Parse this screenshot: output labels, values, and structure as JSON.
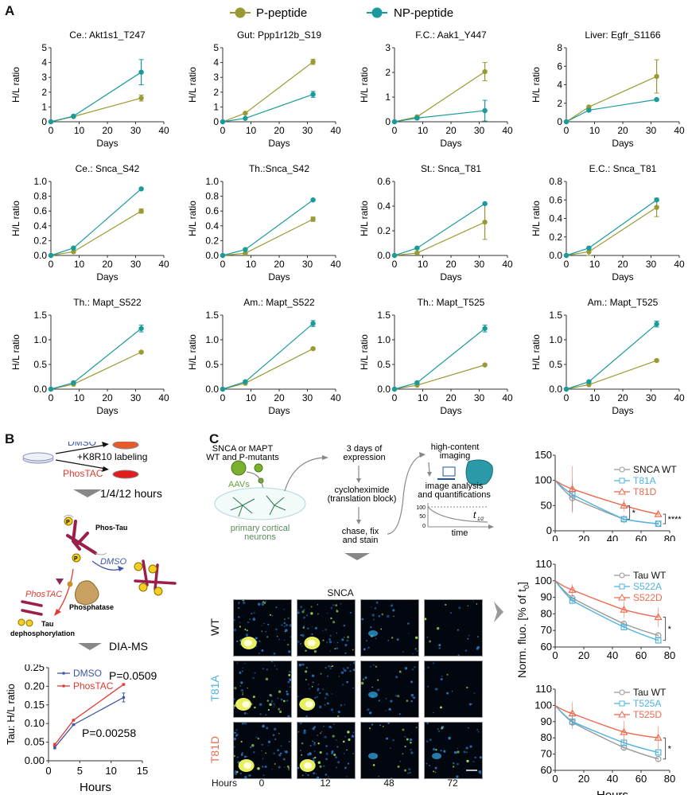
{
  "panel_labels": {
    "a": "A",
    "b": "B",
    "c": "C"
  },
  "colors": {
    "p_peptide": "#9a9a35",
    "np_peptide": "#1a9a9a",
    "dmso": "#3d56a8",
    "phostac": "#e03a32",
    "wt": "#999999",
    "mut_a": "#4fb3e0",
    "mut_d": "#ec6a4f",
    "neuron": "#5a8a5a"
  },
  "legend_a": {
    "p_peptide": "P-peptide",
    "np_peptide": "NP-peptide"
  },
  "chart_data": [
    {
      "type": "line",
      "title": "Ce.: Akt1s1_T247",
      "xlabel": "Days",
      "ylabel": "H/L ratio",
      "xlim": [
        0,
        40
      ],
      "ylim": [
        0,
        5
      ],
      "xticks": [
        "0",
        "10",
        "20",
        "30",
        "40"
      ],
      "yticks": [
        "0",
        "1",
        "2",
        "3",
        "4",
        "5"
      ],
      "x": [
        0,
        8,
        32
      ],
      "series": [
        {
          "name": "P-peptide",
          "values": [
            0,
            0.35,
            1.6
          ],
          "err": [
            0,
            0.05,
            0.2
          ]
        },
        {
          "name": "NP-peptide",
          "values": [
            0,
            0.38,
            3.35
          ],
          "err": [
            0,
            0.05,
            0.85
          ]
        }
      ]
    },
    {
      "type": "line",
      "title": "Gut: Ppp1r12b_S19",
      "xlabel": "Days",
      "ylabel": "H/L ratio",
      "xlim": [
        0,
        40
      ],
      "ylim": [
        0,
        5
      ],
      "xticks": [
        "0",
        "10",
        "20",
        "30",
        "40"
      ],
      "yticks": [
        "0",
        "1",
        "2",
        "3",
        "4",
        "5"
      ],
      "x": [
        0,
        8,
        32
      ],
      "series": [
        {
          "name": "P-peptide",
          "values": [
            0,
            0.58,
            4.05
          ],
          "err": [
            0,
            0.05,
            0.18
          ]
        },
        {
          "name": "NP-peptide",
          "values": [
            0,
            0.23,
            1.85
          ],
          "err": [
            0,
            0.03,
            0.2
          ]
        }
      ]
    },
    {
      "type": "line",
      "title": "F.C.: Aak1_Y447",
      "xlabel": "Days",
      "ylabel": "H/L ratio",
      "xlim": [
        0,
        40
      ],
      "ylim": [
        0,
        3
      ],
      "xticks": [
        "0",
        "10",
        "20",
        "30",
        "40"
      ],
      "yticks": [
        "0",
        "1",
        "2",
        "3"
      ],
      "x": [
        0,
        8,
        32
      ],
      "series": [
        {
          "name": "P-peptide",
          "values": [
            0,
            0.2,
            2.03
          ],
          "err": [
            0,
            0.03,
            0.37
          ]
        },
        {
          "name": "NP-peptide",
          "values": [
            0,
            0.15,
            0.45
          ],
          "err": [
            0,
            0.05,
            0.42
          ]
        }
      ]
    },
    {
      "type": "line",
      "title": "Liver: Egfr_S1166",
      "xlabel": "Days",
      "ylabel": "H/L ratio",
      "xlim": [
        0,
        40
      ],
      "ylim": [
        0,
        8
      ],
      "xticks": [
        "0",
        "10",
        "20",
        "30",
        "40"
      ],
      "yticks": [
        "0",
        "2",
        "4",
        "6",
        "8"
      ],
      "x": [
        0,
        8,
        32
      ],
      "series": [
        {
          "name": "P-peptide",
          "values": [
            0,
            1.6,
            4.9
          ],
          "err": [
            0,
            0.1,
            1.8
          ]
        },
        {
          "name": "NP-peptide",
          "values": [
            0,
            1.25,
            2.4
          ],
          "err": [
            0,
            0.08,
            0.1
          ]
        }
      ]
    },
    {
      "type": "line",
      "title": "Ce.: Snca_S42",
      "xlabel": "Days",
      "ylabel": "H/L ratio",
      "xlim": [
        0,
        40
      ],
      "ylim": [
        0,
        1.0
      ],
      "xticks": [
        "0",
        "10",
        "20",
        "30",
        "40"
      ],
      "yticks": [
        "0.0",
        "0.2",
        "0.4",
        "0.6",
        "0.8",
        "1.0"
      ],
      "x": [
        0,
        8,
        32
      ],
      "series": [
        {
          "name": "P-peptide",
          "values": [
            0,
            0.05,
            0.6
          ],
          "err": [
            0,
            0.01,
            0.03
          ]
        },
        {
          "name": "NP-peptide",
          "values": [
            0,
            0.1,
            0.9
          ],
          "err": [
            0,
            0.01,
            0.01
          ]
        }
      ]
    },
    {
      "type": "line",
      "title": "Th.:Snca_S42",
      "xlabel": "Days",
      "ylabel": "H/L ratio",
      "xlim": [
        0,
        40
      ],
      "ylim": [
        0,
        1.0
      ],
      "xticks": [
        "0",
        "10",
        "20",
        "30",
        "40"
      ],
      "yticks": [
        "0.0",
        "0.2",
        "0.4",
        "0.6",
        "0.8",
        "1.0"
      ],
      "x": [
        0,
        8,
        32
      ],
      "series": [
        {
          "name": "P-peptide",
          "values": [
            0,
            0.03,
            0.49
          ],
          "err": [
            0,
            0.01,
            0.03
          ]
        },
        {
          "name": "NP-peptide",
          "values": [
            0,
            0.08,
            0.75
          ],
          "err": [
            0,
            0.01,
            0.01
          ]
        }
      ]
    },
    {
      "type": "line",
      "title": "St.: Snca_T81",
      "xlabel": "Days",
      "ylabel": "H/L ratio",
      "xlim": [
        0,
        40
      ],
      "ylim": [
        0,
        0.6
      ],
      "xticks": [
        "0",
        "10",
        "20",
        "30",
        "40"
      ],
      "yticks": [
        "0.0",
        "0.2",
        "0.4",
        "0.6"
      ],
      "x": [
        0,
        8,
        32
      ],
      "series": [
        {
          "name": "P-peptide",
          "values": [
            0,
            0.02,
            0.27
          ],
          "err": [
            0,
            0.01,
            0.14
          ]
        },
        {
          "name": "NP-peptide",
          "values": [
            0,
            0.06,
            0.42
          ],
          "err": [
            0,
            0.005,
            0.005
          ]
        }
      ]
    },
    {
      "type": "line",
      "title": "E.C.: Snca_T81",
      "xlabel": "Days",
      "ylabel": "H/L ratio",
      "xlim": [
        0,
        40
      ],
      "ylim": [
        0,
        0.8
      ],
      "xticks": [
        "0",
        "10",
        "20",
        "30",
        "40"
      ],
      "yticks": [
        "0.0",
        "0.2",
        "0.4",
        "0.6",
        "0.8"
      ],
      "x": [
        0,
        8,
        32
      ],
      "series": [
        {
          "name": "P-peptide",
          "values": [
            0,
            0.04,
            0.52
          ],
          "err": [
            0,
            0.04,
            0.1
          ]
        },
        {
          "name": "NP-peptide",
          "values": [
            0,
            0.08,
            0.6
          ],
          "err": [
            0,
            0.01,
            0.01
          ]
        }
      ]
    },
    {
      "type": "line",
      "title": "Th.: Mapt_S522",
      "xlabel": "Days",
      "ylabel": "H/L ratio",
      "xlim": [
        0,
        40
      ],
      "ylim": [
        0,
        1.5
      ],
      "xticks": [
        "0",
        "10",
        "20",
        "30",
        "40"
      ],
      "yticks": [
        "0.0",
        "0.5",
        "1.0",
        "1.5"
      ],
      "x": [
        0,
        8,
        32
      ],
      "series": [
        {
          "name": "P-peptide",
          "values": [
            0,
            0.1,
            0.75
          ],
          "err": [
            0,
            0.01,
            0.02
          ]
        },
        {
          "name": "NP-peptide",
          "values": [
            0,
            0.13,
            1.23
          ],
          "err": [
            0,
            0.02,
            0.07
          ]
        }
      ]
    },
    {
      "type": "line",
      "title": "Am.: Mapt_S522",
      "xlabel": "Days",
      "ylabel": "H/L ratio",
      "xlim": [
        0,
        40
      ],
      "ylim": [
        0,
        1.5
      ],
      "xticks": [
        "0",
        "10",
        "20",
        "30",
        "40"
      ],
      "yticks": [
        "0.0",
        "0.5",
        "1.0",
        "1.5"
      ],
      "x": [
        0,
        8,
        32
      ],
      "series": [
        {
          "name": "P-peptide",
          "values": [
            0,
            0.12,
            0.82
          ],
          "err": [
            0,
            0.01,
            0.02
          ]
        },
        {
          "name": "NP-peptide",
          "values": [
            0,
            0.15,
            1.33
          ],
          "err": [
            0,
            0.02,
            0.06
          ]
        }
      ]
    },
    {
      "type": "line",
      "title": "Th.: Mapt_T525",
      "xlabel": "Days",
      "ylabel": "H/L ratio",
      "xlim": [
        0,
        40
      ],
      "ylim": [
        0,
        1.5
      ],
      "xticks": [
        "0",
        "10",
        "20",
        "30",
        "40"
      ],
      "yticks": [
        "0.0",
        "0.5",
        "1.0",
        "1.5"
      ],
      "x": [
        0,
        8,
        32
      ],
      "series": [
        {
          "name": "P-peptide",
          "values": [
            0,
            0.08,
            0.49
          ],
          "err": [
            0,
            0.01,
            0.02
          ]
        },
        {
          "name": "NP-peptide",
          "values": [
            0,
            0.13,
            1.23
          ],
          "err": [
            0,
            0.02,
            0.07
          ]
        }
      ]
    },
    {
      "type": "line",
      "title": "Am.: Mapt_T525",
      "xlabel": "Days",
      "ylabel": "H/L ratio",
      "xlim": [
        0,
        40
      ],
      "ylim": [
        0,
        1.5
      ],
      "xticks": [
        "0",
        "10",
        "20",
        "30",
        "40"
      ],
      "yticks": [
        "0.0",
        "0.5",
        "1.0",
        "1.5"
      ],
      "x": [
        0,
        8,
        32
      ],
      "series": [
        {
          "name": "P-peptide",
          "values": [
            0,
            0.09,
            0.58
          ],
          "err": [
            0,
            0.01,
            0.02
          ]
        },
        {
          "name": "NP-peptide",
          "values": [
            0,
            0.15,
            1.32
          ],
          "err": [
            0,
            0.02,
            0.06
          ]
        }
      ]
    },
    {
      "type": "line",
      "title": "",
      "xlabel": "Hours",
      "ylabel": "Tau: H/L ratio",
      "xlim": [
        0,
        15
      ],
      "ylim": [
        0,
        0.25
      ],
      "xticks": [
        "0",
        "5",
        "10",
        "15"
      ],
      "yticks": [
        "0.00",
        "0.05",
        "0.10",
        "0.15",
        "0.20",
        "0.25"
      ],
      "x": [
        1,
        4,
        12
      ],
      "series": [
        {
          "name": "DMSO",
          "values": [
            0.036,
            0.097,
            0.17
          ],
          "err": [
            0.004,
            0.002,
            0.012
          ]
        },
        {
          "name": "PhosTAC",
          "values": [
            0.043,
            0.109,
            0.205
          ],
          "err": [
            0.004,
            0.002,
            0.002
          ]
        }
      ],
      "annotations": [
        "P=0.0509",
        "P=0.00258"
      ],
      "legend": "top-left"
    },
    {
      "type": "line",
      "title": "",
      "xlabel": "",
      "ylabel": "",
      "xlim": [
        0,
        80
      ],
      "ylim": [
        0,
        150
      ],
      "xticks": [
        "0",
        "20",
        "40",
        "60",
        "80"
      ],
      "yticks": [
        "0",
        "50",
        "100",
        "150"
      ],
      "x": [
        0,
        12,
        48,
        72
      ],
      "series": [
        {
          "name": "SNCA WT",
          "values": [
            100,
            65,
            23,
            14
          ],
          "err": [
            0,
            30,
            8,
            3
          ]
        },
        {
          "name": "T81A",
          "values": [
            100,
            72,
            23,
            14
          ],
          "err": [
            0,
            30,
            5,
            3
          ]
        },
        {
          "name": "T81D",
          "values": [
            100,
            83,
            50,
            33
          ],
          "err": [
            0,
            45,
            12,
            3
          ]
        }
      ],
      "annotations": [
        "*",
        "****"
      ],
      "legend": "top-right"
    },
    {
      "type": "line",
      "title": "",
      "xlabel": "",
      "ylabel": "Norm. fluo. [% of t0]",
      "xlim": [
        0,
        80
      ],
      "ylim": [
        60,
        110
      ],
      "xticks": [
        "0",
        "20",
        "40",
        "60",
        "80"
      ],
      "yticks": [
        "60",
        "70",
        "80",
        "90",
        "100",
        "110"
      ],
      "x": [
        0,
        12,
        48,
        72
      ],
      "series": [
        {
          "name": "Tau WT",
          "values": [
            100,
            89.5,
            74,
            67
          ],
          "err": [
            0,
            2,
            2,
            1.5
          ]
        },
        {
          "name": "S522A",
          "values": [
            100,
            88,
            72,
            64
          ],
          "err": [
            0,
            2,
            2,
            1
          ]
        },
        {
          "name": "S522D",
          "values": [
            100,
            94.5,
            82.5,
            78
          ],
          "err": [
            0,
            3.5,
            5,
            6
          ]
        }
      ],
      "annotations": [
        "*"
      ],
      "legend": "top-right"
    },
    {
      "type": "line",
      "title": "",
      "xlabel": "Hours",
      "ylabel": "",
      "xlim": [
        0,
        80
      ],
      "ylim": [
        60,
        110
      ],
      "xticks": [
        "0",
        "20",
        "40",
        "60",
        "80"
      ],
      "yticks": [
        "60",
        "70",
        "80",
        "90",
        "100",
        "110"
      ],
      "x": [
        0,
        12,
        48,
        72
      ],
      "series": [
        {
          "name": "Tau WT",
          "values": [
            100,
            89.5,
            74,
            67
          ],
          "err": [
            0,
            4,
            2,
            1.5
          ]
        },
        {
          "name": "T525A",
          "values": [
            100,
            90,
            77,
            71
          ],
          "err": [
            0,
            3,
            2,
            1
          ]
        },
        {
          "name": "T525D",
          "values": [
            100,
            95,
            83.5,
            80
          ],
          "err": [
            0,
            7,
            7,
            7
          ]
        }
      ],
      "annotations": [
        "*"
      ],
      "legend": "top-right"
    }
  ],
  "panel_b": {
    "dmso": "DMSO",
    "labeling": "+K8R10 labeling",
    "phostac": "PhosTAC",
    "hours": "1/4/12 hours",
    "phos_tau": "Phos-Tau",
    "dmso_italic": "DMSO",
    "phostac_italic": "PhosTAC",
    "phosphatase": "Phosphatase",
    "tau": "Tau",
    "dephos": "dephosphorylation",
    "dia_ms": "DIA-MS",
    "p_symbol": "P"
  },
  "panel_c": {
    "constructs": "SNCA or MAPT",
    "constructs2": "WT and P-mutants",
    "aavs": "AAVs",
    "neurons": "primary cortical",
    "neurons2": "neurons",
    "expression": "3 days of",
    "expression2": "expression",
    "cyclo": "cycloheximide",
    "cyclo2": "(translation block)",
    "chase": "chase, fix",
    "chase2": "and stain",
    "hci": "high-content",
    "hci2": "imaging",
    "analysis": "image analysis",
    "analysis2": "and quantifications",
    "mini_y": [
      "100",
      "50",
      "0"
    ],
    "mini_t": "t",
    "mini_sub": "1/2",
    "mini_time": "time",
    "snca": "SNCA",
    "rows": [
      "WT",
      "T81A",
      "T81D"
    ],
    "hours_label": "Hours",
    "cols": [
      "0",
      "12",
      "48",
      "72"
    ],
    "ylabel_main": "Norm. fluo. [% of t",
    "ylabel_sub": "0",
    "ylabel_end": "]"
  }
}
